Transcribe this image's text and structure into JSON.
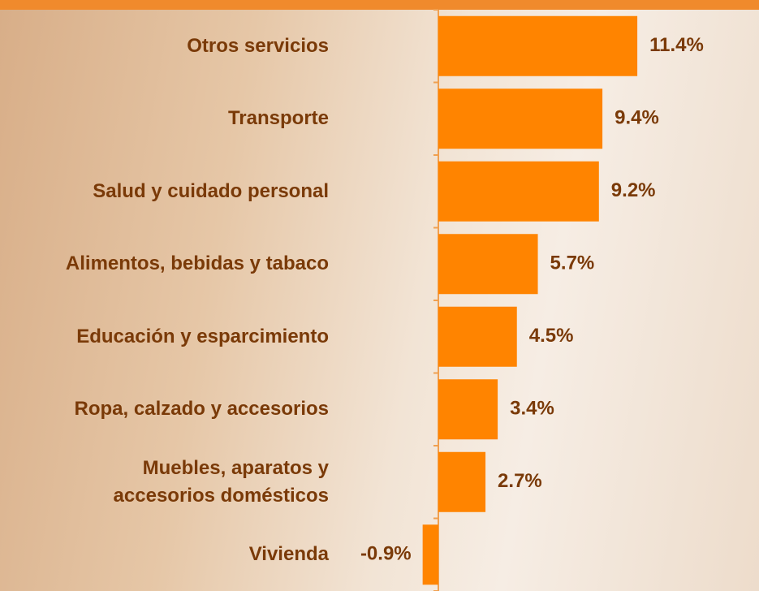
{
  "chart_data": {
    "type": "bar",
    "orientation": "horizontal",
    "categories": [
      "Otros servicios",
      "Transporte",
      "Salud y cuidado personal",
      "Alimentos, bebidas y tabaco",
      "Educación y esparcimiento",
      "Ropa, calzado y accesorios",
      "Muebles, aparatos y\naccesorios domésticos",
      "Vivienda"
    ],
    "values": [
      11.4,
      9.4,
      9.2,
      5.7,
      4.5,
      3.4,
      2.7,
      -0.9
    ],
    "value_labels": [
      "11.4%",
      "9.4%",
      "9.2%",
      "5.7%",
      "4.5%",
      "3.4%",
      "2.7%",
      "-0.9%"
    ],
    "color": "#ff8400"
  }
}
